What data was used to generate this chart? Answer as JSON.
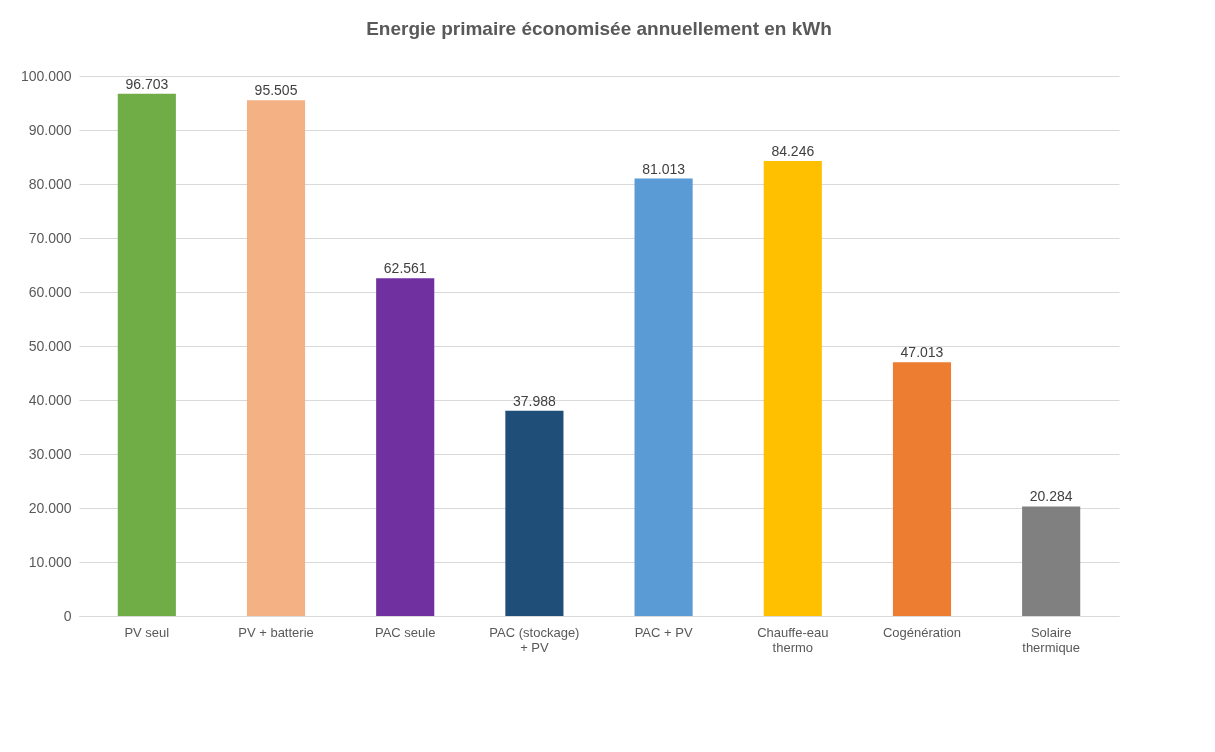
{
  "chart_data": {
    "type": "bar",
    "title": "Energie primaire économisée annuellement en kWh",
    "categories": [
      "PV seul",
      "PV + batterie",
      "PAC seule",
      "PAC (stockage) + PV",
      "PAC + PV",
      "Chauffe-eau thermo",
      "Cogénération",
      "Solaire thermique"
    ],
    "values": [
      96703,
      95505,
      62561,
      37988,
      81013,
      84246,
      47013,
      20284
    ],
    "value_labels": [
      "96.703",
      "95.505",
      "62.561",
      "37.988",
      "81.013",
      "84.246",
      "47.013",
      "20.284"
    ],
    "colors": [
      "#70ad47",
      "#f4b183",
      "#7030a0",
      "#1f4e79",
      "#5b9bd5",
      "#ffc000",
      "#ed7d31",
      "#808080"
    ],
    "ylim": [
      0,
      100000
    ],
    "yticks": [
      0,
      {
        "value": 10000,
        "label": "10.000"
      },
      {
        "value": 20000,
        "label": "20.000"
      },
      {
        "value": 30000,
        "label": "30.000"
      },
      {
        "value": 40000,
        "label": "40.000"
      },
      {
        "value": 50000,
        "label": "50.000"
      },
      {
        "value": 60000,
        "label": "60.000"
      },
      {
        "value": 70000,
        "label": "70.000"
      },
      {
        "value": 80000,
        "label": "80.000"
      },
      {
        "value": 90000,
        "label": "90.000"
      },
      {
        "value": 100000,
        "label": "100.000"
      }
    ],
    "grid": "y"
  }
}
